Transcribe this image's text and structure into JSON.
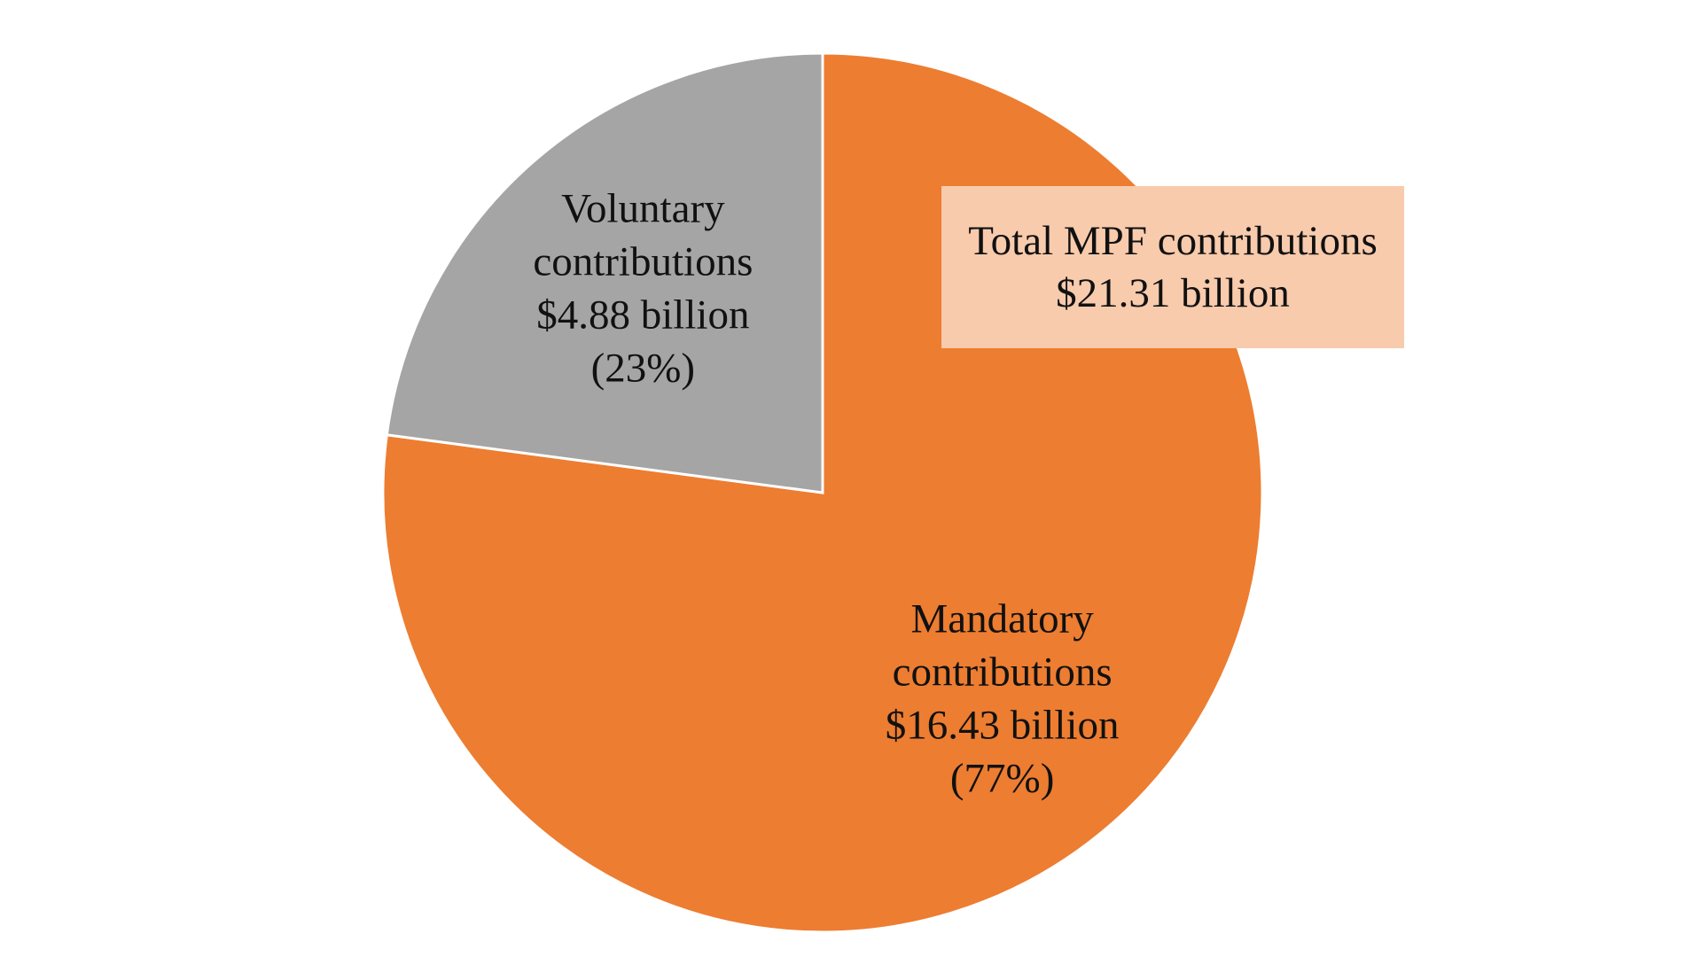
{
  "chart_data": {
    "type": "pie",
    "title": "",
    "slices": [
      {
        "name": "Mandatory contributions",
        "value": 16.43,
        "value_label": "$16.43 billion",
        "percent_label": "(77%)",
        "color": "#ed7d31"
      },
      {
        "name": "Voluntary contributions",
        "value": 4.88,
        "value_label": "$4.88 billion",
        "percent_label": "(23%)",
        "color": "#a5a5a5"
      }
    ],
    "start_angle_deg": 0,
    "direction": "clockwise",
    "legend": "none",
    "slice_border_color": "#ffffff",
    "total_label": {
      "title": "Total MPF contributions",
      "value": "$21.31 billion",
      "background": "#f8cbad"
    }
  }
}
